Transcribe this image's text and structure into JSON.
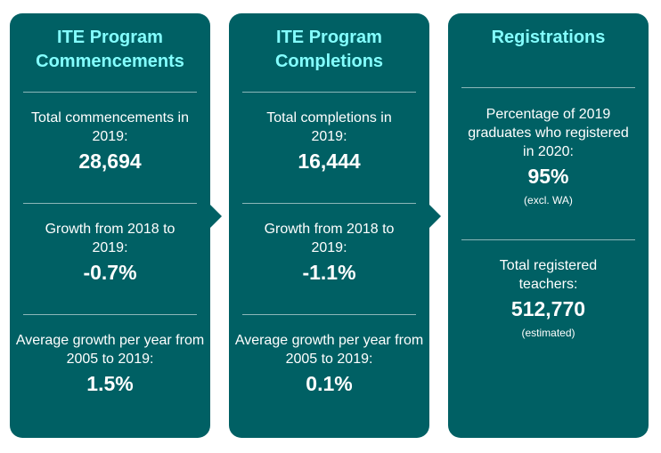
{
  "colors": {
    "card_background": "#006064",
    "title_color": "#84ffff",
    "text_color": "#ffffff"
  },
  "cards": [
    {
      "title_line1": "ITE Program",
      "title_line2": "Commencements",
      "stats": [
        {
          "label": "Total commencements in 2019:",
          "value": "28,694"
        },
        {
          "label": "Growth from 2018 to 2019:",
          "value": "-0.7%"
        },
        {
          "label": "Average growth per year from 2005 to 2019:",
          "value": "1.5%"
        }
      ]
    },
    {
      "title_line1": "ITE Program",
      "title_line2": "Completions",
      "stats": [
        {
          "label": "Total completions in 2019:",
          "value": "16,444"
        },
        {
          "label": "Growth from 2018 to 2019:",
          "value": "-1.1%"
        },
        {
          "label": "Average growth per year from 2005 to 2019:",
          "value": "0.1%"
        }
      ]
    },
    {
      "title_line1": "Registrations",
      "stats": [
        {
          "label": "Percentage of 2019 graduates who registered in 2020:",
          "value": "95%",
          "note": "(excl. WA)"
        },
        {
          "label": "Total registered teachers:",
          "value": "512,770",
          "note": "(estimated)"
        }
      ]
    }
  ]
}
